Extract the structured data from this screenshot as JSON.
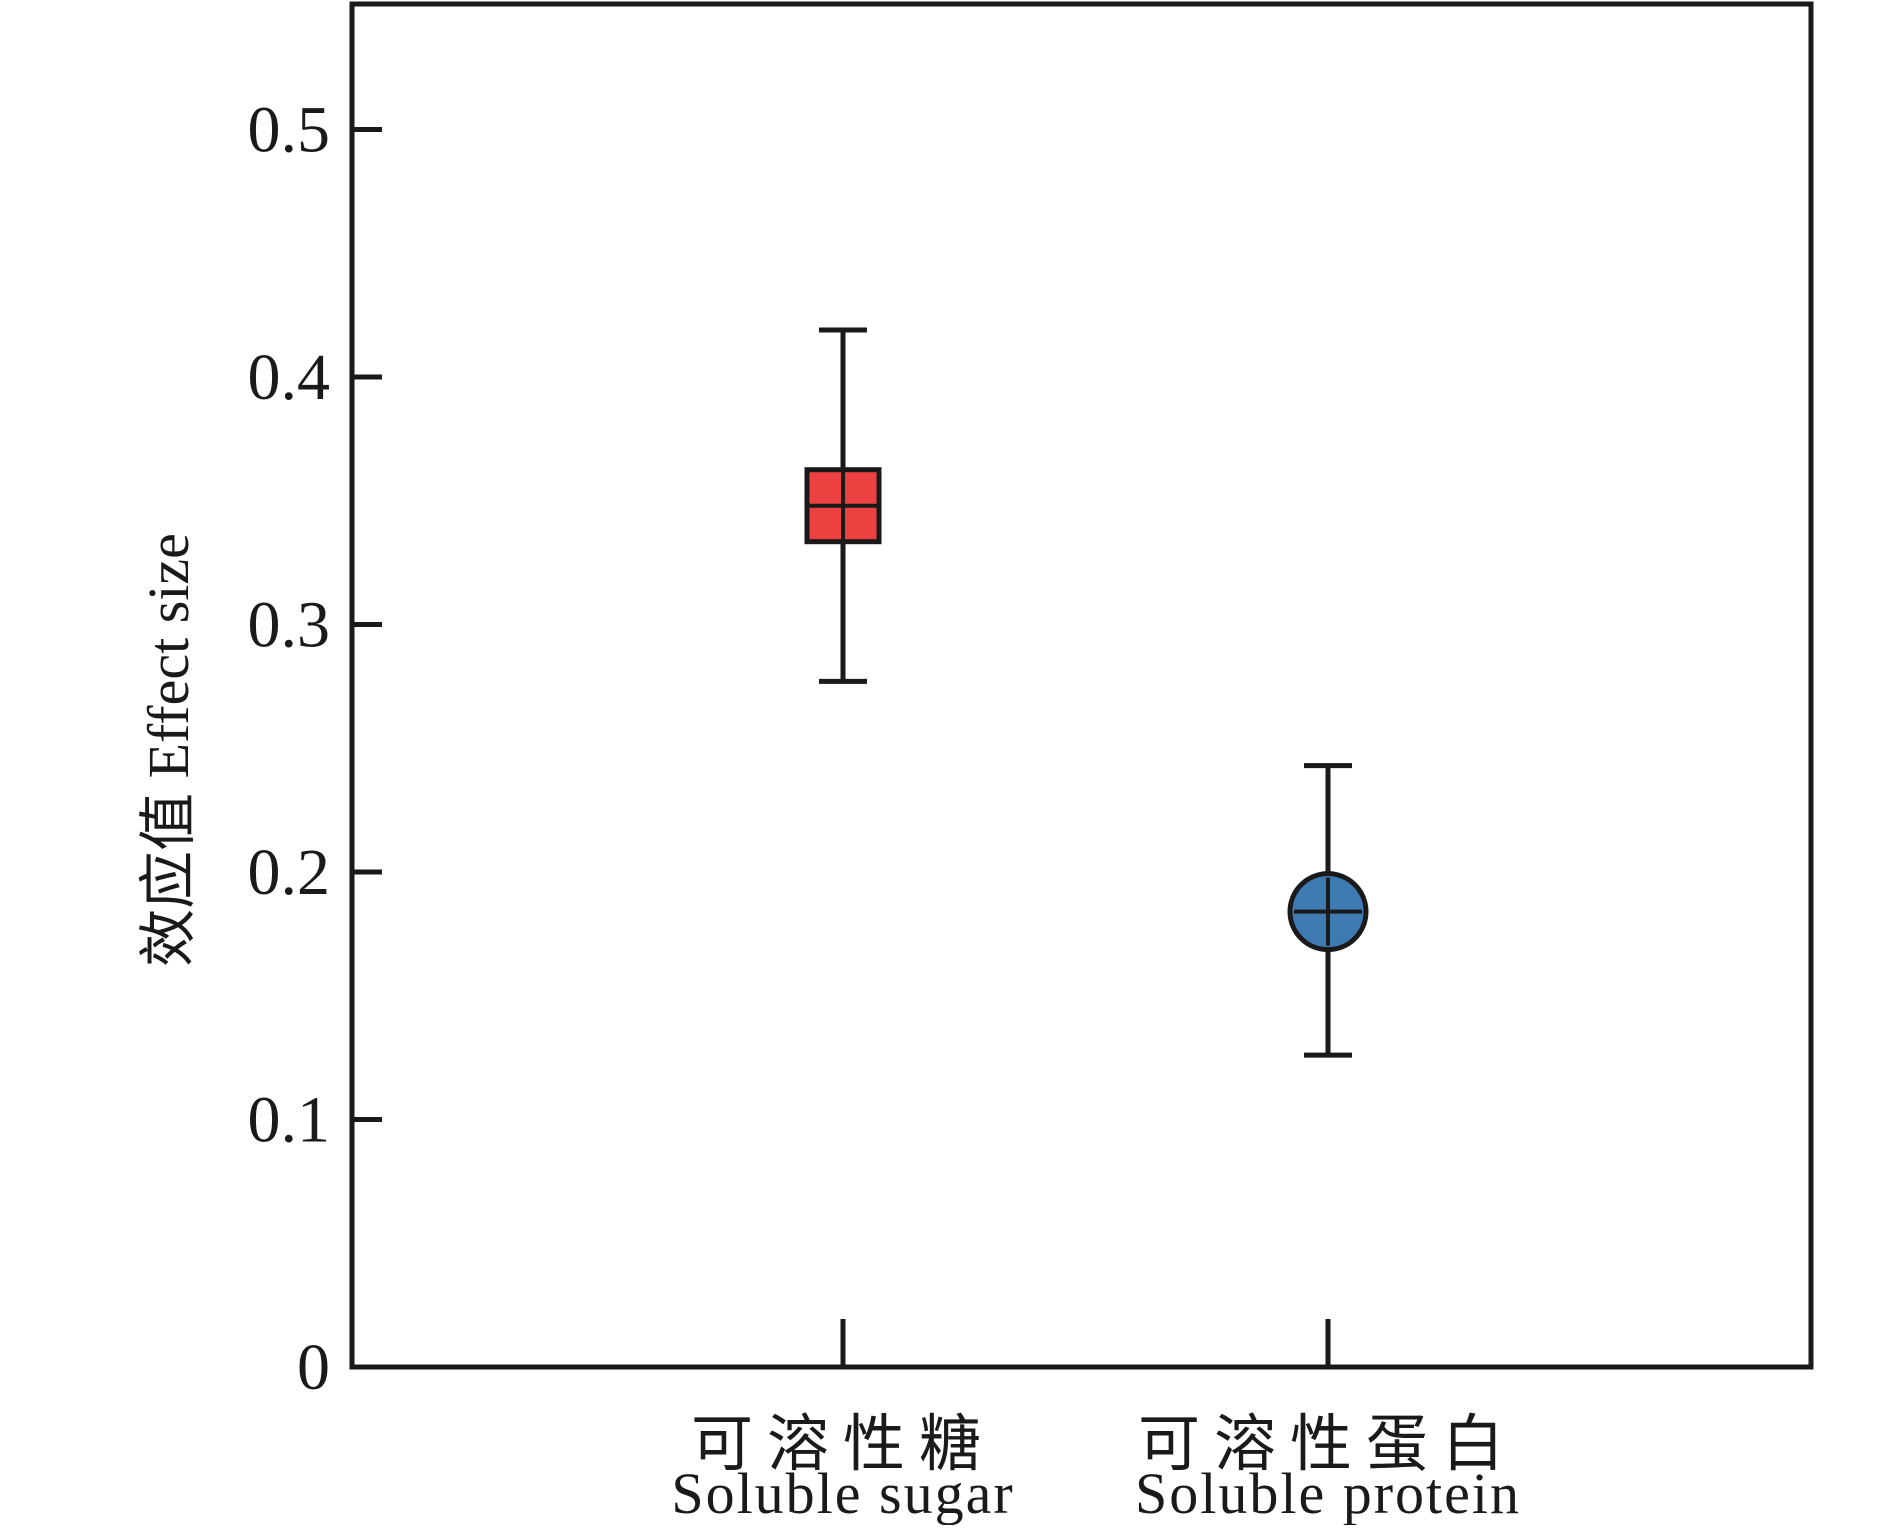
{
  "chart_data": {
    "type": "scatter",
    "title": "",
    "ylabel": "效应值 Effect size",
    "xlabel": "",
    "ylim": [
      0,
      0.55
    ],
    "yticks": [
      0,
      0.1,
      0.2,
      0.3,
      0.4,
      0.5
    ],
    "ytick_labels": [
      "0",
      "0.1",
      "0.2",
      "0.3",
      "0.4",
      "0.5"
    ],
    "grid": false,
    "categories": [
      {
        "zh": "可溶性糖",
        "en": "Soluble sugar"
      },
      {
        "zh": "可溶性蛋白",
        "en": "Soluble protein"
      }
    ],
    "points": [
      {
        "category_index": 0,
        "value": 0.348,
        "ci_low": 0.277,
        "ci_high": 0.419,
        "marker": "square",
        "color": "#ed4040"
      },
      {
        "category_index": 1,
        "value": 0.184,
        "ci_low": 0.126,
        "ci_high": 0.243,
        "marker": "circle",
        "color": "#3f7bb3"
      }
    ],
    "axis_color": "#1a1a1a"
  }
}
